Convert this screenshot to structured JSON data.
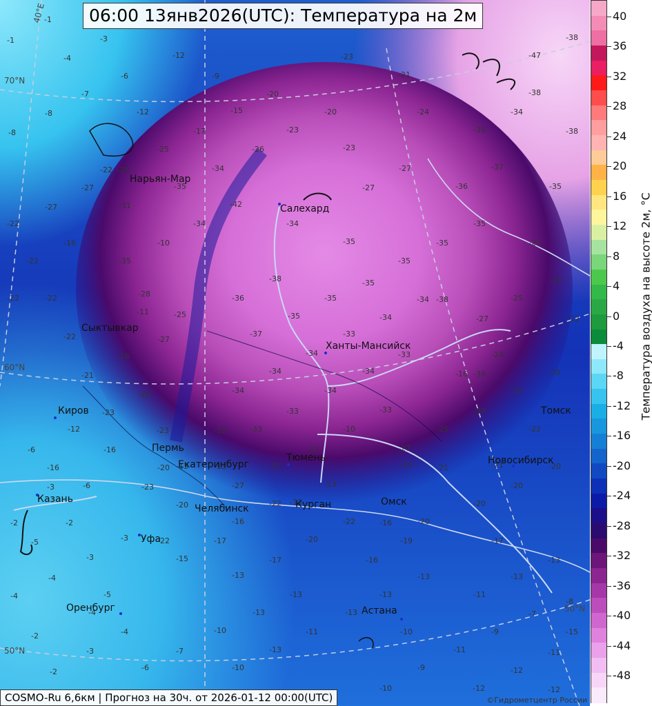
{
  "title": "06:00 13янв2026(UTC): Температура на 2м",
  "footer": "COSMO-Ru 6,6км | Прогноз на  30ч. от 2026-01-12 00:00(UTC)",
  "copyright": "©Гидрометцентр России",
  "colorbar": {
    "title": "Температура воздуха на высоте 2м, °C",
    "ticks": [
      "40",
      "36",
      "32",
      "28",
      "24",
      "20",
      "16",
      "12",
      "8",
      "4",
      "0",
      "-4",
      "-8",
      "-12",
      "-16",
      "-20",
      "-24",
      "-28",
      "-32",
      "-36",
      "-40",
      "-44",
      "-48"
    ],
    "colors": [
      "#f7a8c8",
      "#f48cb6",
      "#ee6fa3",
      "#c2185b",
      "#e91e63",
      "#ff1a1a",
      "#ff4d4d",
      "#ff7a7a",
      "#ff9e9e",
      "#ffb3b3",
      "#ffcc99",
      "#ffb347",
      "#ffd24d",
      "#ffe680",
      "#fff59d",
      "#d9f0a3",
      "#a6e3a1",
      "#7ad67a",
      "#4cc94c",
      "#33b84a",
      "#2aa845",
      "#1e9a3f",
      "#0b8c3a",
      "#bff4ff",
      "#8ee8fb",
      "#5cd6f5",
      "#36c3ef",
      "#1aaee6",
      "#1797de",
      "#157fd6",
      "#1364cc",
      "#1149c2",
      "#0e2fb8",
      "#0c1aa8",
      "#1b0f8a",
      "#2a0c70",
      "#4a0a6a",
      "#6c1679",
      "#8b2592",
      "#a537a8",
      "#bc4dbc",
      "#d066cf",
      "#df82de",
      "#eaa0ea",
      "#f2bdf2",
      "#f7d6f7",
      "#fbeafb"
    ]
  },
  "cities": [
    {
      "name": "Нарьян-Мар"
    },
    {
      "name": "Салехард"
    },
    {
      "name": "Сыктывкар"
    },
    {
      "name": "Ханты-Мансийск"
    },
    {
      "name": "Киров"
    },
    {
      "name": "Пермь"
    },
    {
      "name": "Екатеринбург"
    },
    {
      "name": "Тюмень"
    },
    {
      "name": "Томск"
    },
    {
      "name": "Новосибирск"
    },
    {
      "name": "Казань"
    },
    {
      "name": "Челябинск"
    },
    {
      "name": "Курган"
    },
    {
      "name": "Омск"
    },
    {
      "name": "Уфа"
    },
    {
      "name": "Оренбург"
    },
    {
      "name": "Астана"
    }
  ],
  "latitude_labels": [
    "40°E",
    "70°N",
    "60°N",
    "50°N",
    "50°N"
  ],
  "values": [
    "-1",
    "-3",
    "-4",
    "-6",
    "-7",
    "-8",
    "-9",
    "-12",
    "-15",
    "-17",
    "-20",
    "-23",
    "-21",
    "-24",
    "-25",
    "-26",
    "-27",
    "-31",
    "-34",
    "-35",
    "-36",
    "-37",
    "-38",
    "-39",
    "-42",
    "-47",
    "-33",
    "-22",
    "-16",
    "-13",
    "-11",
    "-10",
    "-5",
    "-2",
    "-19",
    "-28",
    "-29",
    "-32"
  ]
}
